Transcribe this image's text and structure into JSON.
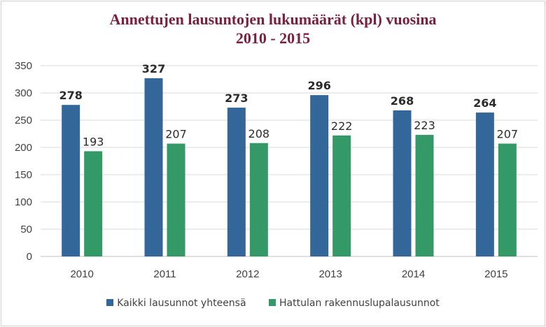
{
  "chart_data": {
    "type": "bar",
    "title_lines": [
      "Annettujen lausuntojen lukumäärät (kpl) vuosina",
      "2010 - 2015"
    ],
    "categories": [
      "2010",
      "2011",
      "2012",
      "2013",
      "2014",
      "2015"
    ],
    "series": [
      {
        "name": "Kaikki lausunnot yhteensä",
        "values": [
          278,
          327,
          273,
          296,
          268,
          264
        ],
        "color": "#336699",
        "label_bold": true
      },
      {
        "name": "Hattulan rakennuslupalausunnot",
        "values": [
          193,
          207,
          208,
          222,
          223,
          207
        ],
        "color": "#339966",
        "label_bold": false
      }
    ],
    "ylim": [
      0,
      350
    ],
    "yticks": [
      0,
      50,
      100,
      150,
      200,
      250,
      300,
      350
    ],
    "grid": true,
    "legend_position": "bottom",
    "xlabel": "",
    "ylabel": ""
  }
}
